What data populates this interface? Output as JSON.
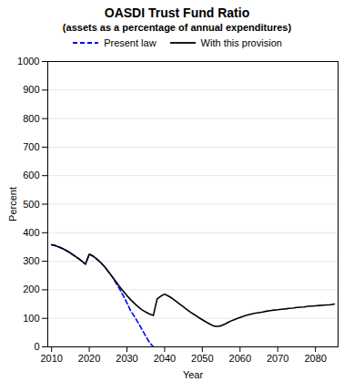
{
  "chart_data": {
    "type": "line",
    "title": "OASDI Trust Fund Ratio",
    "subtitle": "(assets as a percentage of annual expenditures)",
    "xlabel": "Year",
    "ylabel": "Percent",
    "xlim": [
      2009,
      2086
    ],
    "xticks": [
      2010,
      2020,
      2030,
      2040,
      2050,
      2060,
      2070,
      2080
    ],
    "ylim": [
      0,
      1000
    ],
    "yticks": [
      0,
      100,
      200,
      300,
      400,
      500,
      600,
      700,
      800,
      900,
      1000
    ],
    "grid": true,
    "legend": "top",
    "series": [
      {
        "name": "Present law",
        "color": "#0000ff",
        "line_style": "dashed",
        "x": [
          2010,
          2011,
          2012,
          2013,
          2014,
          2015,
          2016,
          2017,
          2018,
          2019,
          2020,
          2021,
          2022,
          2023,
          2024,
          2025,
          2026,
          2027,
          2028,
          2029,
          2030,
          2031,
          2032,
          2033,
          2034,
          2035,
          2036,
          2037
        ],
        "values": [
          358,
          355,
          350,
          344,
          337,
          329,
          320,
          311,
          301,
          290,
          325,
          318,
          308,
          296,
          282,
          265,
          247,
          226,
          204,
          180,
          154,
          126,
          106,
          84,
          61,
          37,
          15,
          0
        ]
      },
      {
        "name": "With this provision",
        "color": "#000000",
        "line_style": "solid",
        "x": [
          2010,
          2011,
          2012,
          2013,
          2014,
          2015,
          2016,
          2017,
          2018,
          2019,
          2020,
          2021,
          2022,
          2023,
          2024,
          2025,
          2026,
          2027,
          2028,
          2029,
          2030,
          2031,
          2032,
          2033,
          2034,
          2035,
          2036,
          2037,
          2038,
          2039,
          2040,
          2041,
          2042,
          2043,
          2044,
          2045,
          2046,
          2047,
          2048,
          2049,
          2050,
          2051,
          2052,
          2053,
          2054,
          2055,
          2056,
          2057,
          2058,
          2059,
          2060,
          2061,
          2062,
          2063,
          2064,
          2065,
          2066,
          2067,
          2068,
          2069,
          2070,
          2071,
          2072,
          2073,
          2074,
          2075,
          2076,
          2077,
          2078,
          2079,
          2080,
          2081,
          2082,
          2083,
          2084,
          2085
        ],
        "values": [
          358,
          355,
          350,
          344,
          337,
          329,
          320,
          311,
          301,
          290,
          325,
          318,
          308,
          296,
          282,
          265,
          248,
          230,
          212,
          196,
          180,
          165,
          152,
          140,
          130,
          122,
          115,
          110,
          168,
          178,
          185,
          178,
          170,
          160,
          150,
          140,
          130,
          120,
          112,
          103,
          95,
          87,
          80,
          73,
          72,
          74,
          80,
          87,
          93,
          98,
          103,
          108,
          112,
          115,
          118,
          120,
          122,
          125,
          127,
          129,
          130,
          132,
          133,
          135,
          136,
          138,
          139,
          140,
          142,
          143,
          144,
          145,
          146,
          147,
          148,
          150
        ]
      }
    ]
  }
}
